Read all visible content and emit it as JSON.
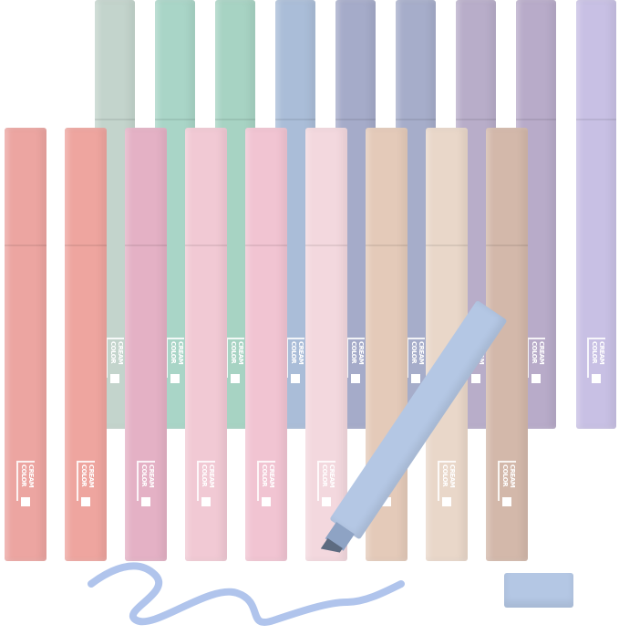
{
  "brand_logo": "CREAM COLOR",
  "back_row_colors": [
    "#c3d4cc",
    "#a9d5c7",
    "#a7d3c3",
    "#aabdd8",
    "#a5abc9",
    "#a6adca",
    "#b8adc9",
    "#b8abc9",
    "#c8c0e4"
  ],
  "front_row_colors": [
    "#eca5a1",
    "#eea59f",
    "#e4b1c5",
    "#f1c9d4",
    "#f1c4d2",
    "#f3d8de",
    "#e4cab9",
    "#e9d7c9",
    "#d3b8aa"
  ],
  "open_highlighter_color": "#b4c7e4",
  "ink_color": "#b0c4ec"
}
